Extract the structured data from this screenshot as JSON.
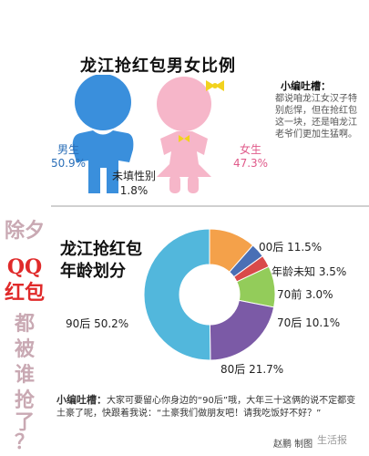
{
  "section1": {
    "title": "龙江抢红包男女比例",
    "male_label": "男生",
    "male_value": "50.9%",
    "female_label": "女生",
    "female_value": "47.3%",
    "unknown_label": "未填性别",
    "unknown_value": "1.8%",
    "note_title": "小编吐槽：",
    "note_body": "都说咱龙江女汉子特别彪悍，但在抢红包这一块，还是咱龙江老爷们更加生猛啊。",
    "colors": {
      "male": "#3a8fdc",
      "female": "#f6b6c9",
      "bow": "#f2d21e"
    }
  },
  "side_text": [
    "除夕",
    "QQ",
    "红包",
    "都",
    "被",
    "谁",
    "抢",
    "了",
    "？"
  ],
  "section2": {
    "title_line1": "龙江抢红包",
    "title_line2": "年龄划分",
    "note_title": "小编吐槽：",
    "note_body": "大家可要留心你身边的“90后”哦，大年三十这俩的说不定都变土豪了呢，快跟着我说：“土豪我们做朋友吧！请我吃饭好不好？”",
    "credit": "赵鹏 制图",
    "watermark": "生活报"
  },
  "chart_data": {
    "type": "pie",
    "title": "龙江抢红包年龄划分",
    "slices": [
      {
        "label": "00后",
        "value": 11.5,
        "text": "00后 11.5%",
        "color": "#f4a14a"
      },
      {
        "label": "年龄未知",
        "value": 3.5,
        "text": "年龄未知 3.5%",
        "color": "#4a6fb5"
      },
      {
        "label": "70前",
        "value": 3.0,
        "text": "70前 3.0%",
        "color": "#d94a4a"
      },
      {
        "label": "70后",
        "value": 10.1,
        "text": "70后 10.1%",
        "color": "#93cc5a"
      },
      {
        "label": "80后",
        "value": 21.7,
        "text": "80后 21.7%",
        "color": "#7b5aa6"
      },
      {
        "label": "90后",
        "value": 50.2,
        "text": "90后 50.2%",
        "color": "#52b7dc"
      }
    ]
  }
}
